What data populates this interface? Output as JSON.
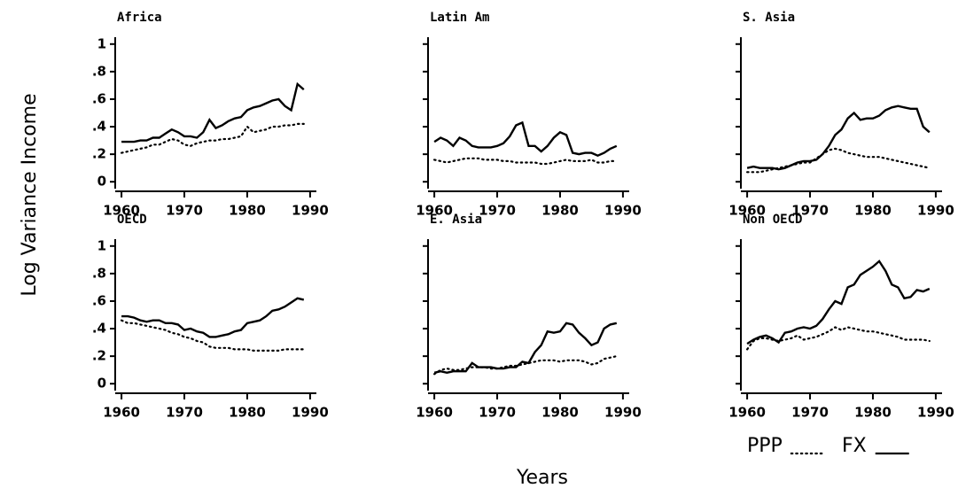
{
  "figure": {
    "y_label": "Log Variance Income",
    "x_label": "Years",
    "legend": [
      {
        "name": "PPP",
        "style": "dotted"
      },
      {
        "name": "FX",
        "style": "solid"
      }
    ]
  },
  "chart_data": [
    {
      "type": "line",
      "title": "Africa",
      "x": [
        1960,
        1961,
        1962,
        1963,
        1964,
        1965,
        1966,
        1967,
        1968,
        1969,
        1970,
        1971,
        1972,
        1973,
        1974,
        1975,
        1976,
        1977,
        1978,
        1979,
        1980,
        1981,
        1982,
        1983,
        1984,
        1985,
        1986,
        1987,
        1988,
        1989
      ],
      "series": [
        {
          "style": "dotted",
          "color": "#000000",
          "values": [
            0.21,
            0.22,
            0.23,
            0.24,
            0.25,
            0.27,
            0.27,
            0.29,
            0.31,
            0.3,
            0.27,
            0.26,
            0.28,
            0.29,
            0.3,
            0.3,
            0.31,
            0.31,
            0.32,
            0.33,
            0.4,
            0.36,
            0.37,
            0.38,
            0.4,
            0.4,
            0.41,
            0.41,
            0.42,
            0.42
          ]
        },
        {
          "style": "solid",
          "color": "#000000",
          "values": [
            0.29,
            0.29,
            0.29,
            0.3,
            0.3,
            0.32,
            0.32,
            0.35,
            0.38,
            0.36,
            0.33,
            0.33,
            0.32,
            0.36,
            0.45,
            0.39,
            0.41,
            0.44,
            0.46,
            0.47,
            0.52,
            0.54,
            0.55,
            0.57,
            0.59,
            0.6,
            0.55,
            0.52,
            0.71,
            0.67
          ]
        }
      ],
      "xlim": [
        1959,
        1991
      ],
      "xticks": [
        1960,
        1970,
        1980,
        1990
      ],
      "ylim": [
        -0.05,
        1.05
      ],
      "yticks": [
        0,
        {
          "value": 0.2,
          "label": ".2"
        },
        {
          "value": 0.4,
          "label": ".4"
        },
        {
          "value": 0.6,
          "label": ".6"
        },
        {
          "value": 0.8,
          "label": ".8"
        },
        1
      ]
    },
    {
      "type": "line",
      "title": "Latin Am",
      "x": [
        1960,
        1961,
        1962,
        1963,
        1964,
        1965,
        1966,
        1967,
        1968,
        1969,
        1970,
        1971,
        1972,
        1973,
        1974,
        1975,
        1976,
        1977,
        1978,
        1979,
        1980,
        1981,
        1982,
        1983,
        1984,
        1985,
        1986,
        1987,
        1988,
        1989
      ],
      "series": [
        {
          "style": "dotted",
          "color": "#000000",
          "values": [
            0.16,
            0.15,
            0.14,
            0.15,
            0.16,
            0.17,
            0.17,
            0.17,
            0.16,
            0.16,
            0.16,
            0.15,
            0.15,
            0.14,
            0.14,
            0.14,
            0.14,
            0.13,
            0.13,
            0.14,
            0.15,
            0.16,
            0.15,
            0.15,
            0.15,
            0.16,
            0.14,
            0.14,
            0.15,
            0.15
          ]
        },
        {
          "style": "solid",
          "color": "#000000",
          "values": [
            0.29,
            0.32,
            0.3,
            0.26,
            0.32,
            0.3,
            0.26,
            0.25,
            0.25,
            0.25,
            0.26,
            0.28,
            0.33,
            0.41,
            0.43,
            0.26,
            0.26,
            0.22,
            0.26,
            0.32,
            0.36,
            0.34,
            0.21,
            0.2,
            0.21,
            0.21,
            0.19,
            0.21,
            0.24,
            0.26
          ]
        }
      ],
      "xlim": [
        1959,
        1991
      ],
      "xticks": [
        1960,
        1970,
        1980,
        1990
      ],
      "ylim": [
        -0.05,
        1.05
      ],
      "yticks": [
        0,
        0.2,
        0.4,
        0.6,
        0.8,
        1
      ]
    },
    {
      "type": "line",
      "title": "S. Asia",
      "x": [
        1960,
        1961,
        1962,
        1963,
        1964,
        1965,
        1966,
        1967,
        1968,
        1969,
        1970,
        1971,
        1972,
        1973,
        1974,
        1975,
        1976,
        1977,
        1978,
        1979,
        1980,
        1981,
        1982,
        1983,
        1984,
        1985,
        1986,
        1987,
        1988,
        1989
      ],
      "series": [
        {
          "style": "dotted",
          "color": "#000000",
          "values": [
            0.07,
            0.07,
            0.07,
            0.08,
            0.09,
            0.1,
            0.11,
            0.12,
            0.13,
            0.14,
            0.14,
            0.17,
            0.2,
            0.23,
            0.24,
            0.23,
            0.21,
            0.2,
            0.19,
            0.18,
            0.18,
            0.18,
            0.17,
            0.16,
            0.15,
            0.14,
            0.13,
            0.12,
            0.11,
            0.1
          ]
        },
        {
          "style": "solid",
          "color": "#000000",
          "values": [
            0.1,
            0.11,
            0.1,
            0.1,
            0.1,
            0.09,
            0.1,
            0.12,
            0.14,
            0.15,
            0.15,
            0.16,
            0.2,
            0.26,
            0.34,
            0.38,
            0.46,
            0.5,
            0.45,
            0.46,
            0.46,
            0.48,
            0.52,
            0.54,
            0.55,
            0.54,
            0.53,
            0.53,
            0.4,
            0.36
          ]
        }
      ],
      "xlim": [
        1959,
        1991
      ],
      "xticks": [
        1960,
        1970,
        1980,
        1990
      ],
      "ylim": [
        -0.05,
        1.05
      ],
      "yticks": [
        0,
        0.2,
        0.4,
        0.6,
        0.8,
        1
      ]
    },
    {
      "type": "line",
      "title": "OECD",
      "x": [
        1960,
        1961,
        1962,
        1963,
        1964,
        1965,
        1966,
        1967,
        1968,
        1969,
        1970,
        1971,
        1972,
        1973,
        1974,
        1975,
        1976,
        1977,
        1978,
        1979,
        1980,
        1981,
        1982,
        1983,
        1984,
        1985,
        1986,
        1987,
        1988,
        1989
      ],
      "series": [
        {
          "style": "dotted",
          "color": "#000000",
          "values": [
            0.46,
            0.44,
            0.44,
            0.43,
            0.42,
            0.41,
            0.4,
            0.39,
            0.37,
            0.36,
            0.34,
            0.33,
            0.31,
            0.3,
            0.27,
            0.26,
            0.26,
            0.26,
            0.25,
            0.25,
            0.25,
            0.24,
            0.24,
            0.24,
            0.24,
            0.24,
            0.25,
            0.25,
            0.25,
            0.25
          ]
        },
        {
          "style": "solid",
          "color": "#000000",
          "values": [
            0.49,
            0.49,
            0.48,
            0.46,
            0.45,
            0.46,
            0.46,
            0.44,
            0.44,
            0.43,
            0.39,
            0.4,
            0.38,
            0.37,
            0.34,
            0.34,
            0.35,
            0.36,
            0.38,
            0.39,
            0.44,
            0.45,
            0.46,
            0.49,
            0.53,
            0.54,
            0.56,
            0.59,
            0.62,
            0.61
          ]
        }
      ],
      "xlim": [
        1959,
        1991
      ],
      "xticks": [
        1960,
        1970,
        1980,
        1990
      ],
      "ylim": [
        -0.05,
        1.05
      ],
      "yticks": [
        0,
        {
          "value": 0.2,
          "label": ".2"
        },
        {
          "value": 0.4,
          "label": ".4"
        },
        {
          "value": 0.6,
          "label": ".6"
        },
        {
          "value": 0.8,
          "label": ".8"
        },
        1
      ]
    },
    {
      "type": "line",
      "title": "E. Asia",
      "x": [
        1960,
        1961,
        1962,
        1963,
        1964,
        1965,
        1966,
        1967,
        1968,
        1969,
        1970,
        1971,
        1972,
        1973,
        1974,
        1975,
        1976,
        1977,
        1978,
        1979,
        1980,
        1981,
        1982,
        1983,
        1984,
        1985,
        1986,
        1987,
        1988,
        1989
      ],
      "series": [
        {
          "style": "dotted",
          "color": "#000000",
          "values": [
            0.07,
            0.1,
            0.11,
            0.1,
            0.1,
            0.11,
            0.12,
            0.12,
            0.12,
            0.11,
            0.11,
            0.12,
            0.13,
            0.13,
            0.14,
            0.15,
            0.16,
            0.17,
            0.17,
            0.17,
            0.16,
            0.17,
            0.17,
            0.17,
            0.16,
            0.14,
            0.15,
            0.18,
            0.19,
            0.2
          ]
        },
        {
          "style": "solid",
          "color": "#000000",
          "values": [
            0.08,
            0.09,
            0.08,
            0.09,
            0.09,
            0.09,
            0.15,
            0.12,
            0.12,
            0.12,
            0.11,
            0.11,
            0.12,
            0.12,
            0.16,
            0.15,
            0.23,
            0.28,
            0.38,
            0.37,
            0.38,
            0.44,
            0.43,
            0.37,
            0.33,
            0.28,
            0.3,
            0.4,
            0.43,
            0.44
          ]
        }
      ],
      "xlim": [
        1959,
        1991
      ],
      "xticks": [
        1960,
        1970,
        1980,
        1990
      ],
      "ylim": [
        -0.05,
        1.05
      ],
      "yticks": [
        0,
        0.2,
        0.4,
        0.6,
        0.8,
        1
      ]
    },
    {
      "type": "line",
      "title": "Non OECD",
      "x": [
        1960,
        1961,
        1962,
        1963,
        1964,
        1965,
        1966,
        1967,
        1968,
        1969,
        1970,
        1971,
        1972,
        1973,
        1974,
        1975,
        1976,
        1977,
        1978,
        1979,
        1980,
        1981,
        1982,
        1983,
        1984,
        1985,
        1986,
        1987,
        1988,
        1989
      ],
      "series": [
        {
          "style": "dotted",
          "color": "#000000",
          "values": [
            0.25,
            0.31,
            0.33,
            0.33,
            0.32,
            0.31,
            0.32,
            0.33,
            0.35,
            0.32,
            0.33,
            0.34,
            0.36,
            0.38,
            0.41,
            0.39,
            0.41,
            0.4,
            0.39,
            0.38,
            0.38,
            0.37,
            0.36,
            0.35,
            0.34,
            0.32,
            0.32,
            0.32,
            0.32,
            0.31
          ]
        },
        {
          "style": "solid",
          "color": "#000000",
          "values": [
            0.29,
            0.32,
            0.34,
            0.35,
            0.33,
            0.3,
            0.37,
            0.38,
            0.4,
            0.41,
            0.4,
            0.42,
            0.47,
            0.54,
            0.6,
            0.58,
            0.7,
            0.72,
            0.79,
            0.82,
            0.85,
            0.89,
            0.82,
            0.72,
            0.7,
            0.62,
            0.63,
            0.68,
            0.67,
            0.69
          ]
        }
      ],
      "xlim": [
        1959,
        1991
      ],
      "xticks": [
        1960,
        1970,
        1980,
        1990
      ],
      "ylim": [
        -0.05,
        1.05
      ],
      "yticks": [
        0,
        0.2,
        0.4,
        0.6,
        0.8,
        1
      ]
    }
  ]
}
